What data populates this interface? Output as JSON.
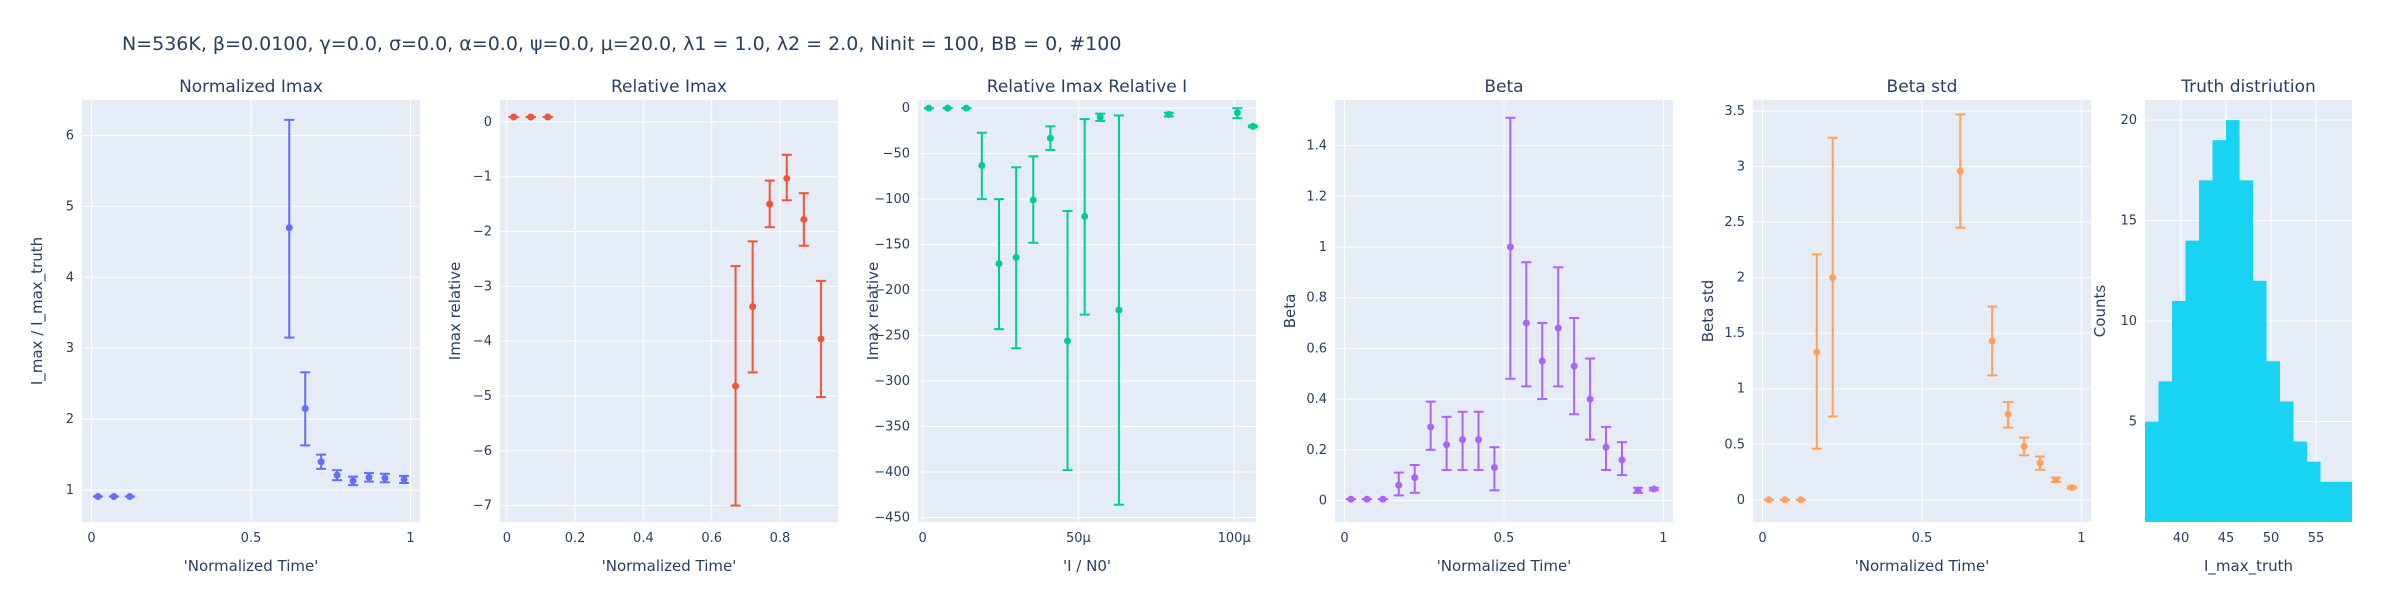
{
  "figure": {
    "title": "N=536K, β=0.0100, γ=0.0, σ=0.0,  α=0.0, ψ=0.0, μ=20.0, λ1 = 1.0, λ2 = 2.0, Ninit = 100, BB = 0, #100"
  },
  "chart_data": [
    {
      "type": "scatter",
      "title": "Normalized Imax",
      "xlabel": "'Normalized Time'",
      "ylabel": "I_max / I_max_truth",
      "color": "#636efa",
      "xlim": [
        -0.03,
        1.03
      ],
      "ylim": [
        0.55,
        6.5
      ],
      "xticks": [
        0,
        0.5,
        1
      ],
      "xtick_labels": [
        "0",
        "0.5",
        "1"
      ],
      "yticks": [
        1,
        2,
        3,
        4,
        5,
        6
      ],
      "ytick_labels": [
        "1",
        "2",
        "3",
        "4",
        "5",
        "6"
      ],
      "points": [
        {
          "x": 0.02,
          "y": 0.91,
          "lo": 0.91,
          "hi": 0.91
        },
        {
          "x": 0.07,
          "y": 0.91,
          "lo": 0.91,
          "hi": 0.91
        },
        {
          "x": 0.12,
          "y": 0.91,
          "lo": 0.91,
          "hi": 0.91
        },
        {
          "x": 0.62,
          "y": 4.7,
          "lo": 3.15,
          "hi": 6.22
        },
        {
          "x": 0.67,
          "y": 2.15,
          "lo": 1.63,
          "hi": 2.66
        },
        {
          "x": 0.72,
          "y": 1.4,
          "lo": 1.3,
          "hi": 1.5
        },
        {
          "x": 0.77,
          "y": 1.21,
          "lo": 1.14,
          "hi": 1.28
        },
        {
          "x": 0.82,
          "y": 1.13,
          "lo": 1.07,
          "hi": 1.19
        },
        {
          "x": 0.87,
          "y": 1.18,
          "lo": 1.12,
          "hi": 1.24
        },
        {
          "x": 0.92,
          "y": 1.17,
          "lo": 1.11,
          "hi": 1.23
        },
        {
          "x": 0.98,
          "y": 1.15,
          "lo": 1.1,
          "hi": 1.2
        }
      ]
    },
    {
      "type": "scatter",
      "title": "Relative Imax",
      "xlabel": "'Normalized Time'",
      "ylabel": "Imax relative",
      "color": "#ef553b",
      "xlim": [
        -0.02,
        0.97
      ],
      "ylim": [
        -7.3,
        0.4
      ],
      "xticks": [
        0,
        0.2,
        0.4,
        0.6,
        0.8
      ],
      "xtick_labels": [
        "0",
        "0.2",
        "0.4",
        "0.6",
        "0.8"
      ],
      "yticks": [
        0,
        -1,
        -2,
        -3,
        -4,
        -5,
        -6,
        -7
      ],
      "ytick_labels": [
        "0",
        "−1",
        "−2",
        "−3",
        "−4",
        "−5",
        "−6",
        "−7"
      ],
      "points": [
        {
          "x": 0.02,
          "y": 0.09,
          "lo": 0.09,
          "hi": 0.09
        },
        {
          "x": 0.07,
          "y": 0.09,
          "lo": 0.09,
          "hi": 0.09
        },
        {
          "x": 0.12,
          "y": 0.09,
          "lo": 0.09,
          "hi": 0.09
        },
        {
          "x": 0.67,
          "y": -4.82,
          "lo": -7.0,
          "hi": -2.63
        },
        {
          "x": 0.72,
          "y": -3.37,
          "lo": -4.57,
          "hi": -2.18
        },
        {
          "x": 0.77,
          "y": -1.5,
          "lo": -1.92,
          "hi": -1.07
        },
        {
          "x": 0.82,
          "y": -1.03,
          "lo": -1.43,
          "hi": -0.6
        },
        {
          "x": 0.87,
          "y": -1.78,
          "lo": -2.26,
          "hi": -1.3
        },
        {
          "x": 0.92,
          "y": -3.96,
          "lo": -5.02,
          "hi": -2.9
        }
      ]
    },
    {
      "type": "scatter",
      "title": "Relative Imax Relative I",
      "xlabel": "'I / N0'",
      "ylabel": "Imax relative",
      "color": "#00cc96",
      "xlim": [
        -1.5,
        107
      ],
      "ylim": [
        -455,
        9
      ],
      "xticks": [
        0,
        50,
        100
      ],
      "xtick_labels": [
        "0",
        "50μ",
        "100μ"
      ],
      "yticks": [
        0,
        -50,
        -100,
        -150,
        -200,
        -250,
        -300,
        -350,
        -400,
        -450
      ],
      "ytick_labels": [
        "0",
        "−50",
        "−100",
        "−150",
        "−200",
        "−250",
        "−300",
        "−350",
        "−400",
        "−450"
      ],
      "points": [
        {
          "x": 2,
          "y": 0,
          "lo": 0,
          "hi": 0
        },
        {
          "x": 8,
          "y": 0,
          "lo": 0,
          "hi": 0
        },
        {
          "x": 14,
          "y": 0,
          "lo": 0,
          "hi": 0
        },
        {
          "x": 19,
          "y": -63,
          "lo": -100,
          "hi": -27
        },
        {
          "x": 24.5,
          "y": -171,
          "lo": -243,
          "hi": -100
        },
        {
          "x": 30,
          "y": -164,
          "lo": -264,
          "hi": -65
        },
        {
          "x": 35.5,
          "y": -101,
          "lo": -148,
          "hi": -53
        },
        {
          "x": 41,
          "y": -33,
          "lo": -46,
          "hi": -20
        },
        {
          "x": 46.5,
          "y": -256,
          "lo": -398,
          "hi": -113
        },
        {
          "x": 52,
          "y": -119,
          "lo": -227,
          "hi": -12
        },
        {
          "x": 57,
          "y": -10,
          "lo": -14,
          "hi": -6
        },
        {
          "x": 63,
          "y": -222,
          "lo": -436,
          "hi": -8
        },
        {
          "x": 79,
          "y": -7,
          "lo": -9,
          "hi": -5
        },
        {
          "x": 101,
          "y": -5,
          "lo": -11,
          "hi": 0
        },
        {
          "x": 106,
          "y": -20,
          "lo": -21,
          "hi": -19
        }
      ]
    },
    {
      "type": "scatter",
      "title": "Beta",
      "xlabel": "'Normalized Time'",
      "ylabel": "Beta",
      "color": "#ab63fa",
      "xlim": [
        -0.03,
        1.03
      ],
      "ylim": [
        -0.085,
        1.58
      ],
      "xticks": [
        0,
        0.5,
        1
      ],
      "xtick_labels": [
        "0",
        "0.5",
        "1"
      ],
      "yticks": [
        0,
        0.2,
        0.4,
        0.6,
        0.8,
        1,
        1.2,
        1.4
      ],
      "ytick_labels": [
        "0",
        "0.2",
        "0.4",
        "0.6",
        "0.8",
        "1",
        "1.2",
        "1.4"
      ],
      "points": [
        {
          "x": 0.02,
          "y": 0.005,
          "lo": 0.005,
          "hi": 0.005
        },
        {
          "x": 0.07,
          "y": 0.005,
          "lo": 0.005,
          "hi": 0.005
        },
        {
          "x": 0.12,
          "y": 0.005,
          "lo": 0.005,
          "hi": 0.005
        },
        {
          "x": 0.17,
          "y": 0.06,
          "lo": 0.02,
          "hi": 0.11
        },
        {
          "x": 0.22,
          "y": 0.09,
          "lo": 0.03,
          "hi": 0.14
        },
        {
          "x": 0.27,
          "y": 0.29,
          "lo": 0.2,
          "hi": 0.39
        },
        {
          "x": 0.32,
          "y": 0.22,
          "lo": 0.12,
          "hi": 0.33
        },
        {
          "x": 0.37,
          "y": 0.24,
          "lo": 0.12,
          "hi": 0.35
        },
        {
          "x": 0.42,
          "y": 0.24,
          "lo": 0.12,
          "hi": 0.35
        },
        {
          "x": 0.47,
          "y": 0.13,
          "lo": 0.04,
          "hi": 0.21
        },
        {
          "x": 0.52,
          "y": 1.0,
          "lo": 0.48,
          "hi": 1.51
        },
        {
          "x": 0.57,
          "y": 0.7,
          "lo": 0.45,
          "hi": 0.94
        },
        {
          "x": 0.62,
          "y": 0.55,
          "lo": 0.4,
          "hi": 0.7
        },
        {
          "x": 0.67,
          "y": 0.68,
          "lo": 0.45,
          "hi": 0.92
        },
        {
          "x": 0.72,
          "y": 0.53,
          "lo": 0.34,
          "hi": 0.72
        },
        {
          "x": 0.77,
          "y": 0.4,
          "lo": 0.24,
          "hi": 0.56
        },
        {
          "x": 0.82,
          "y": 0.21,
          "lo": 0.12,
          "hi": 0.29
        },
        {
          "x": 0.87,
          "y": 0.16,
          "lo": 0.1,
          "hi": 0.23
        },
        {
          "x": 0.92,
          "y": 0.04,
          "lo": 0.03,
          "hi": 0.05
        },
        {
          "x": 0.97,
          "y": 0.045,
          "lo": 0.04,
          "hi": 0.05
        }
      ]
    },
    {
      "type": "scatter",
      "title": "Beta std",
      "xlabel": "'Normalized Time'",
      "ylabel": "Beta std",
      "color": "#ffa15a",
      "xlim": [
        -0.03,
        1.03
      ],
      "ylim": [
        -0.2,
        3.6
      ],
      "xticks": [
        0,
        0.5,
        1
      ],
      "xtick_labels": [
        "0",
        "0.5",
        "1"
      ],
      "yticks": [
        0,
        0.5,
        1,
        1.5,
        2,
        2.5,
        3,
        3.5
      ],
      "ytick_labels": [
        "0",
        "0.5",
        "1",
        "1.5",
        "2",
        "2.5",
        "3",
        "3.5"
      ],
      "points": [
        {
          "x": 0.02,
          "y": 0.0,
          "lo": 0.0,
          "hi": 0.0
        },
        {
          "x": 0.07,
          "y": 0.0,
          "lo": 0.0,
          "hi": 0.0
        },
        {
          "x": 0.12,
          "y": 0.0,
          "lo": 0.0,
          "hi": 0.0
        },
        {
          "x": 0.17,
          "y": 1.33,
          "lo": 0.46,
          "hi": 2.21
        },
        {
          "x": 0.22,
          "y": 2.0,
          "lo": 0.75,
          "hi": 3.26
        },
        {
          "x": 0.62,
          "y": 2.96,
          "lo": 2.45,
          "hi": 3.47
        },
        {
          "x": 0.72,
          "y": 1.43,
          "lo": 1.12,
          "hi": 1.74
        },
        {
          "x": 0.77,
          "y": 0.77,
          "lo": 0.65,
          "hi": 0.88
        },
        {
          "x": 0.82,
          "y": 0.48,
          "lo": 0.4,
          "hi": 0.56
        },
        {
          "x": 0.87,
          "y": 0.33,
          "lo": 0.27,
          "hi": 0.39
        },
        {
          "x": 0.92,
          "y": 0.18,
          "lo": 0.16,
          "hi": 0.2
        },
        {
          "x": 0.97,
          "y": 0.11,
          "lo": 0.1,
          "hi": 0.12
        }
      ]
    },
    {
      "type": "bar",
      "title": "Truth distriution",
      "xlabel": "I_max_truth",
      "ylabel": "Counts",
      "color": "#19d3f3",
      "xlim": [
        36,
        59
      ],
      "ylim": [
        0,
        21
      ],
      "xticks": [
        40,
        45,
        50,
        55
      ],
      "xtick_labels": [
        "40",
        "45",
        "50",
        "55"
      ],
      "yticks": [
        5,
        10,
        15,
        20
      ],
      "ytick_labels": [
        "5",
        "10",
        "15",
        "20"
      ],
      "bins": [
        {
          "x0": 36,
          "x1": 37.5,
          "count": 5
        },
        {
          "x0": 37.5,
          "x1": 39,
          "count": 7
        },
        {
          "x0": 39,
          "x1": 40.5,
          "count": 11
        },
        {
          "x0": 40.5,
          "x1": 42,
          "count": 14
        },
        {
          "x0": 42,
          "x1": 43.5,
          "count": 17
        },
        {
          "x0": 43.5,
          "x1": 45,
          "count": 19
        },
        {
          "x0": 45,
          "x1": 46.5,
          "count": 20
        },
        {
          "x0": 46.5,
          "x1": 48,
          "count": 17
        },
        {
          "x0": 48,
          "x1": 49.5,
          "count": 12
        },
        {
          "x0": 49.5,
          "x1": 51,
          "count": 8
        },
        {
          "x0": 51,
          "x1": 52.5,
          "count": 6
        },
        {
          "x0": 52.5,
          "x1": 54,
          "count": 4
        },
        {
          "x0": 54,
          "x1": 55.5,
          "count": 3
        },
        {
          "x0": 55.5,
          "x1": 57,
          "count": 2
        },
        {
          "x0": 57,
          "x1": 59,
          "count": 2
        }
      ]
    }
  ]
}
